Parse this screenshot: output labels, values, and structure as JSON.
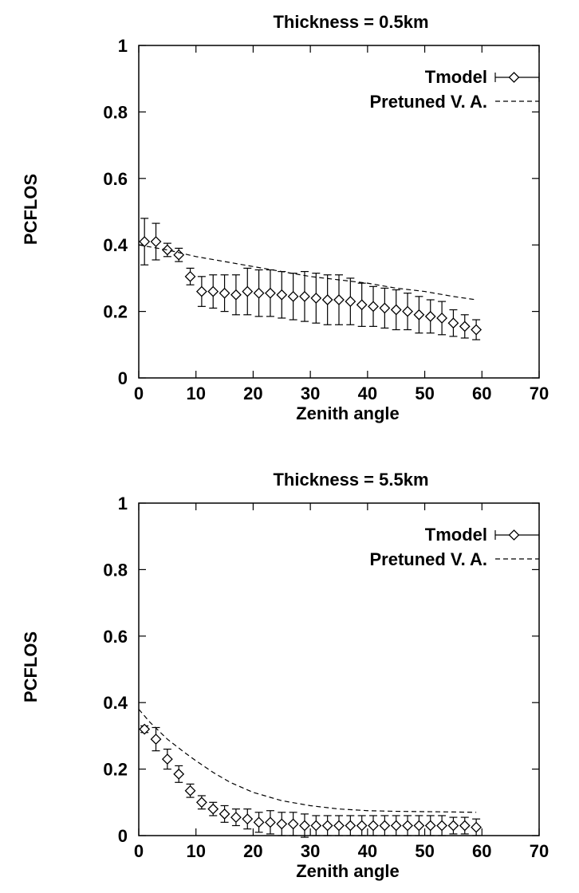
{
  "chart_data": [
    {
      "type": "line",
      "title": "Thickness = 0.5km",
      "xlabel": "Zenith angle",
      "ylabel": "PCFLOS",
      "xlim": [
        0,
        70
      ],
      "ylim": [
        0,
        1
      ],
      "xticks": [
        "0",
        "10",
        "20",
        "30",
        "40",
        "50",
        "60",
        "70"
      ],
      "yticks": [
        "0",
        "0.2",
        "0.4",
        "0.6",
        "0.8",
        "1"
      ],
      "legend_position": "top-right",
      "series": [
        {
          "name": "Tmodel",
          "style": "points-with-errorbars",
          "marker": "diamond",
          "x": [
            1,
            3,
            5,
            7,
            9,
            11,
            13,
            15,
            17,
            19,
            21,
            23,
            25,
            27,
            29,
            31,
            33,
            35,
            37,
            39,
            41,
            43,
            45,
            47,
            49,
            51,
            53,
            55,
            57,
            59
          ],
          "y": [
            0.41,
            0.41,
            0.385,
            0.37,
            0.305,
            0.26,
            0.26,
            0.255,
            0.25,
            0.26,
            0.255,
            0.255,
            0.25,
            0.245,
            0.245,
            0.24,
            0.235,
            0.235,
            0.23,
            0.22,
            0.215,
            0.21,
            0.205,
            0.2,
            0.19,
            0.185,
            0.18,
            0.165,
            0.155,
            0.145
          ],
          "err": [
            0.07,
            0.055,
            0.02,
            0.02,
            0.025,
            0.045,
            0.05,
            0.055,
            0.06,
            0.07,
            0.07,
            0.07,
            0.07,
            0.07,
            0.075,
            0.075,
            0.075,
            0.075,
            0.07,
            0.065,
            0.06,
            0.06,
            0.06,
            0.055,
            0.055,
            0.05,
            0.05,
            0.04,
            0.035,
            0.03
          ]
        },
        {
          "name": "Pretuned V. A.",
          "style": "dashed",
          "x": [
            0,
            5,
            10,
            15,
            20,
            25,
            30,
            35,
            40,
            45,
            50,
            55,
            59
          ],
          "y": [
            0.4,
            0.385,
            0.365,
            0.35,
            0.335,
            0.32,
            0.305,
            0.295,
            0.285,
            0.27,
            0.26,
            0.245,
            0.235
          ]
        }
      ]
    },
    {
      "type": "line",
      "title": "Thickness = 5.5km",
      "xlabel": "Zenith angle",
      "ylabel": "PCFLOS",
      "xlim": [
        0,
        70
      ],
      "ylim": [
        0,
        1
      ],
      "xticks": [
        "0",
        "10",
        "20",
        "30",
        "40",
        "50",
        "60",
        "70"
      ],
      "yticks": [
        "0",
        "0.2",
        "0.4",
        "0.6",
        "0.8",
        "1"
      ],
      "legend_position": "top-right",
      "series": [
        {
          "name": "Tmodel",
          "style": "points-with-errorbars",
          "marker": "diamond",
          "x": [
            1,
            3,
            5,
            7,
            9,
            11,
            13,
            15,
            17,
            19,
            21,
            23,
            25,
            27,
            29,
            31,
            33,
            35,
            37,
            39,
            41,
            43,
            45,
            47,
            49,
            51,
            53,
            55,
            57,
            59
          ],
          "y": [
            0.32,
            0.29,
            0.23,
            0.185,
            0.135,
            0.1,
            0.08,
            0.065,
            0.055,
            0.05,
            0.04,
            0.04,
            0.035,
            0.035,
            0.03,
            0.03,
            0.03,
            0.03,
            0.03,
            0.03,
            0.03,
            0.03,
            0.03,
            0.03,
            0.03,
            0.03,
            0.03,
            0.03,
            0.03,
            0.025
          ],
          "err": [
            0.01,
            0.035,
            0.03,
            0.025,
            0.02,
            0.02,
            0.02,
            0.025,
            0.025,
            0.03,
            0.03,
            0.035,
            0.035,
            0.035,
            0.035,
            0.03,
            0.03,
            0.03,
            0.03,
            0.03,
            0.03,
            0.03,
            0.03,
            0.03,
            0.03,
            0.03,
            0.03,
            0.025,
            0.025,
            0.025
          ]
        },
        {
          "name": "Pretuned V. A.",
          "style": "dashed",
          "x": [
            0,
            2,
            5,
            8,
            10,
            13,
            16,
            20,
            25,
            30,
            35,
            40,
            45,
            50,
            55,
            59
          ],
          "y": [
            0.38,
            0.34,
            0.29,
            0.25,
            0.225,
            0.19,
            0.16,
            0.13,
            0.105,
            0.09,
            0.08,
            0.075,
            0.073,
            0.072,
            0.071,
            0.07
          ]
        }
      ]
    }
  ]
}
